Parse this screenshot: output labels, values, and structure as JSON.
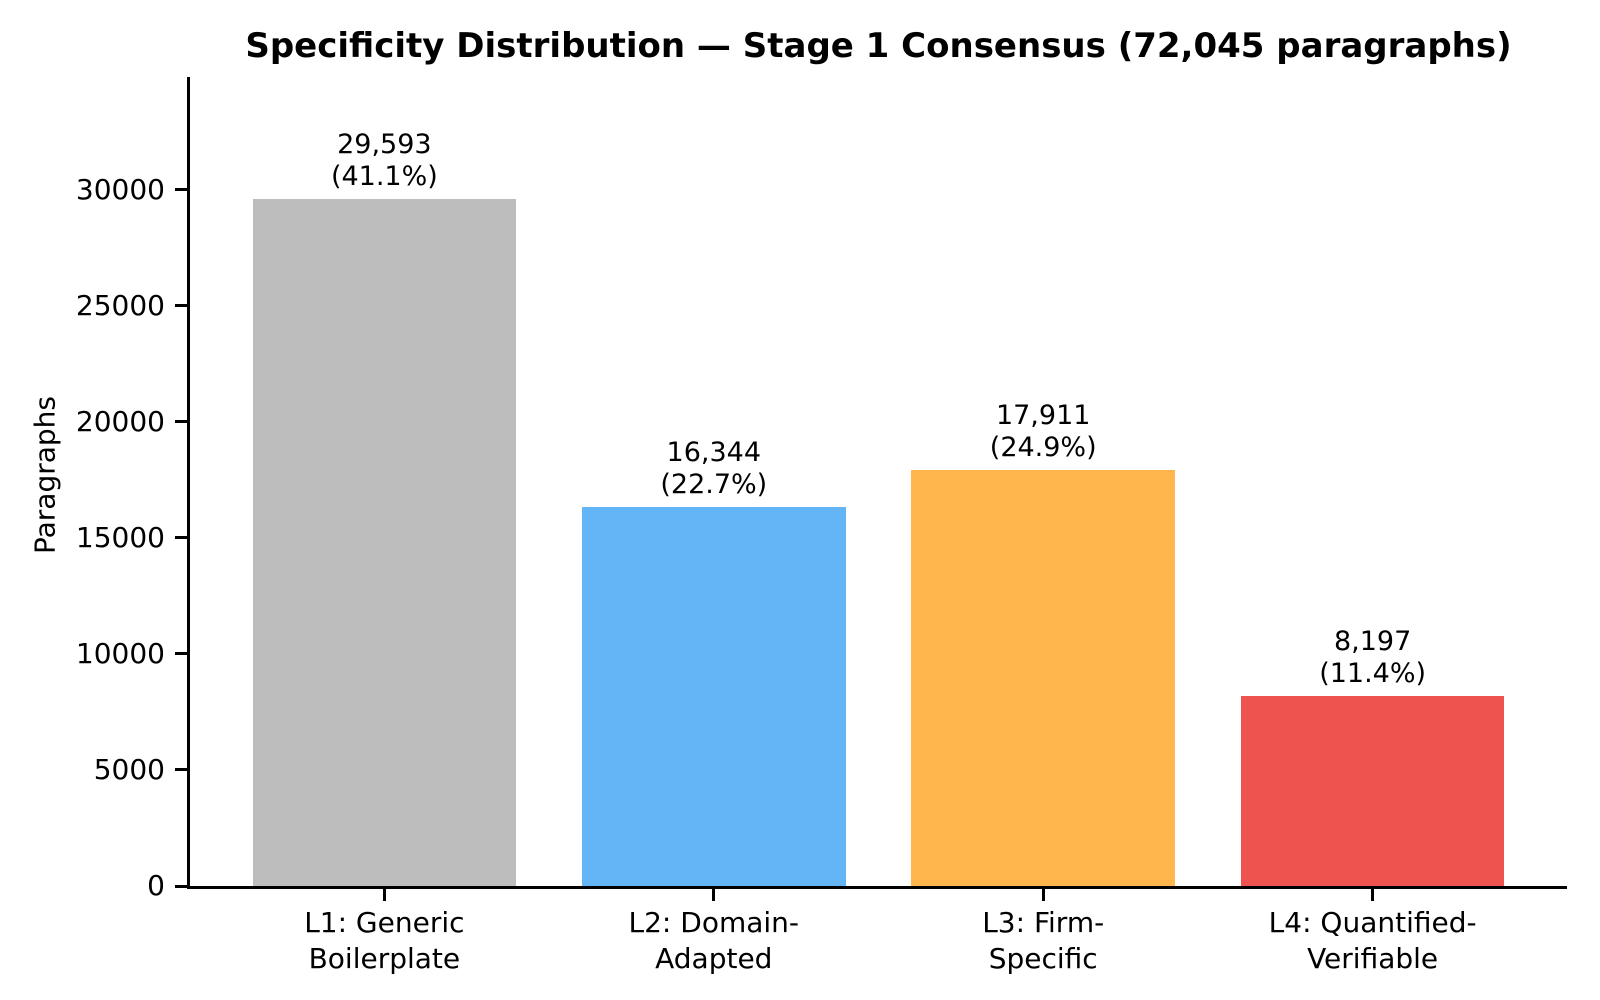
{
  "page": {
    "background": "#ffffff"
  },
  "chart_data": {
    "type": "bar",
    "title": "Specificity Distribution — Stage 1 Consensus (72,045 paragraphs)",
    "xlabel": "",
    "ylabel": "Paragraphs",
    "ylim": [
      0,
      34870
    ],
    "yticks": [
      0,
      5000,
      10000,
      15000,
      20000,
      25000,
      30000
    ],
    "grid": false,
    "legend": null,
    "categories": [
      "L1: Generic\nBoilerplate",
      "L2: Domain-\nAdapted",
      "L3: Firm-\nSpecific",
      "L4: Quantified-\nVerifiable"
    ],
    "values": [
      29593,
      16344,
      17911,
      8197
    ],
    "percent_labels": [
      "(41.1%)",
      "(22.7%)",
      "(24.9%)",
      "(11.4%)"
    ],
    "value_labels": [
      "29,593\n(41.1%)",
      "16,344\n(22.7%)",
      "17,911\n(24.9%)",
      "8,197\n(11.4%)"
    ],
    "bar_colors": [
      "#bdbdbd",
      "#64b5f6",
      "#ffb74d",
      "#ef5350"
    ],
    "axis_color": "#000000",
    "text_color": "#000000"
  }
}
